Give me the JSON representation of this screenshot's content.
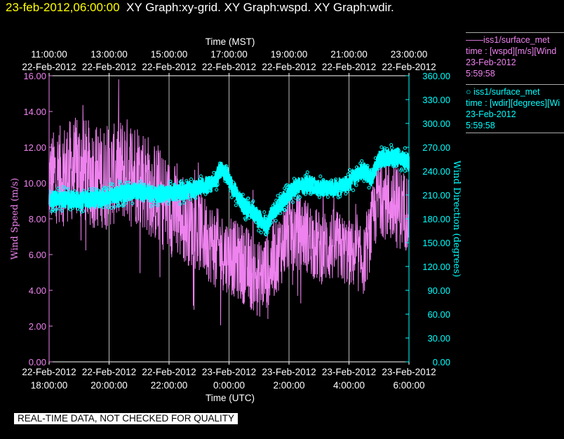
{
  "header": {
    "timestamp": "23-feb-2012,06:00:00",
    "graphs": "XY Graph:xy-grid.  XY Graph:wspd.  XY Graph:wdir."
  },
  "legend": {
    "wspd": {
      "line1": "——iss1/surface_met",
      "line2": "time : [wspd][m/s][Wind",
      "line3": "23-Feb-2012",
      "line4": "5:59:58",
      "color": "#ee82ee"
    },
    "wdir": {
      "line1": "○ iss1/surface_met",
      "line2": "time : [wdir][degrees][Wi",
      "line3": "23-Feb-2012",
      "line4": "5:59:58",
      "color": "#00ffff"
    }
  },
  "disclaimer": "REAL-TIME DATA, NOT CHECKED FOR QUALITY",
  "chart_data": {
    "type": "line",
    "top_axis": {
      "label": "Time (MST)",
      "ticks": [
        "11:00:00",
        "13:00:00",
        "15:00:00",
        "17:00:00",
        "19:00:00",
        "21:00:00",
        "23:00:00"
      ],
      "dates": [
        "22-Feb-2012",
        "22-Feb-2012",
        "22-Feb-2012",
        "22-Feb-2012",
        "22-Feb-2012",
        "22-Feb-2012",
        "22-Feb-2012"
      ]
    },
    "bottom_axis": {
      "label": "Time (UTC)",
      "dates": [
        "22-Feb-2012",
        "22-Feb-2012",
        "22-Feb-2012",
        "23-Feb-2012",
        "23-Feb-2012",
        "23-Feb-2012",
        "23-Feb-2012"
      ],
      "ticks": [
        "18:00:00",
        "20:00:00",
        "22:00:00",
        "0:00:00",
        "2:00:00",
        "4:00:00",
        "6:00:00"
      ]
    },
    "xlim": [
      "22-Feb-2012 18:00:00",
      "23-Feb-2012 06:00:00"
    ],
    "left_axis": {
      "label": "Wind Speed (m/s)",
      "ylim": [
        0,
        16
      ],
      "ticks": [
        "0.00",
        "2.00",
        "4.00",
        "6.00",
        "8.00",
        "10.00",
        "12.00",
        "14.00",
        "16.00"
      ],
      "color": "#ee82ee"
    },
    "right_axis": {
      "label": "Wind Direction (degrees)",
      "ylim": [
        0,
        360
      ],
      "ticks": [
        "0.00",
        "30.00",
        "60.00",
        "90.00",
        "120.00",
        "150.00",
        "180.00",
        "210.00",
        "240.00",
        "270.00",
        "300.00",
        "330.00",
        "360.00"
      ],
      "color": "#00ffff"
    },
    "grid": true,
    "series": [
      {
        "name": "iss1/surface_met time : [wspd][m/s]",
        "axis": "left",
        "style": "line",
        "color": "#ee82ee",
        "x_hours_utc": [
          18.0,
          18.5,
          19.0,
          19.5,
          20.0,
          20.5,
          21.0,
          21.5,
          22.0,
          22.5,
          23.0,
          23.5,
          24.0,
          24.5,
          25.0,
          25.5,
          26.0,
          26.5,
          27.0,
          27.5,
          28.0,
          28.5,
          29.0,
          29.5,
          30.0
        ],
        "mean": [
          10.2,
          10.6,
          10.8,
          10.4,
          10.3,
          10.8,
          10.6,
          9.5,
          8.7,
          8.0,
          7.3,
          6.5,
          5.9,
          5.5,
          4.6,
          5.6,
          7.3,
          7.2,
          6.4,
          6.5,
          6.1,
          5.6,
          9.4,
          8.7,
          8.4
        ],
        "spread": [
          2.6,
          2.8,
          3.0,
          3.0,
          2.8,
          3.0,
          3.0,
          2.8,
          2.8,
          2.5,
          2.3,
          2.3,
          2.1,
          2.3,
          2.2,
          2.1,
          2.2,
          2.1,
          2.1,
          2.1,
          1.9,
          1.9,
          2.2,
          2.4,
          2.2
        ]
      },
      {
        "name": "iss1/surface_met time : [wdir][degrees]",
        "axis": "right",
        "style": "points",
        "color": "#00ffff",
        "x_hours_utc": [
          18.0,
          18.5,
          19.0,
          19.5,
          20.0,
          20.5,
          21.0,
          21.5,
          22.0,
          22.5,
          23.0,
          23.5,
          23.75,
          24.0,
          24.25,
          24.5,
          24.75,
          25.0,
          25.25,
          25.5,
          25.75,
          26.0,
          26.25,
          26.5,
          26.75,
          27.0,
          27.5,
          28.0,
          28.25,
          28.5,
          28.75,
          29.0,
          29.5,
          30.0
        ],
        "values": [
          205,
          205,
          204,
          204,
          208,
          212,
          215,
          211,
          212,
          215,
          220,
          225,
          245,
          230,
          210,
          195,
          190,
          180,
          172,
          190,
          200,
          212,
          220,
          222,
          225,
          218,
          218,
          225,
          235,
          240,
          232,
          255,
          258,
          252
        ]
      }
    ]
  }
}
